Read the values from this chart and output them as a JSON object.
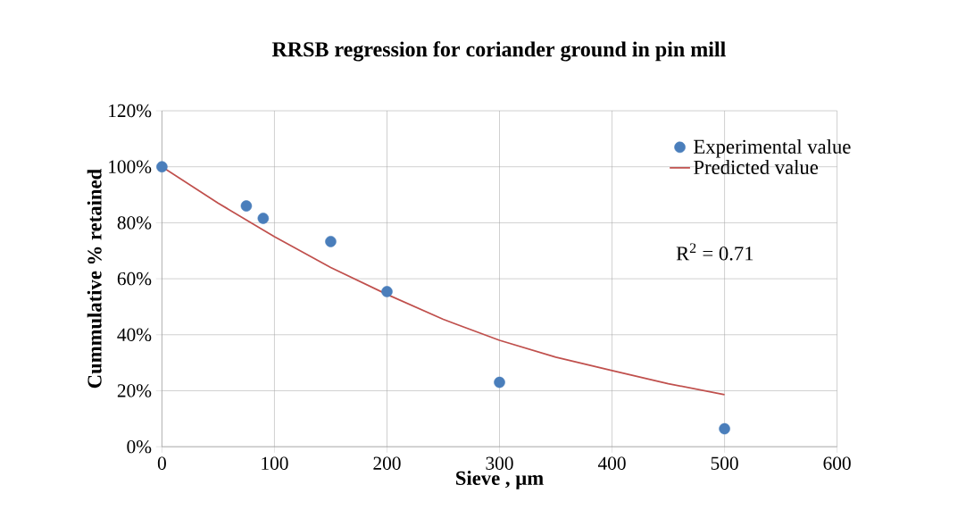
{
  "chart_data": {
    "type": "scatter",
    "title": "RRSB regression for coriander ground in pin mill",
    "xlabel": "Sieve , µm",
    "ylabel": "Cummulative % retained",
    "series": [
      {
        "name": "Experimental value",
        "marker": "circle",
        "color": "#4a7ebb",
        "x": [
          0,
          75,
          90,
          150,
          200,
          300,
          500
        ],
        "values": [
          100,
          86,
          81.6,
          73.3,
          55.4,
          23,
          6.4
        ]
      },
      {
        "name": "Predicted value",
        "type": "line",
        "marker": "none",
        "line_style": "solid",
        "color": "#c0504d",
        "x": [
          0,
          50,
          100,
          150,
          200,
          250,
          300,
          350,
          400,
          450,
          500
        ],
        "values": [
          100,
          87,
          75,
          64,
          54.4,
          45.5,
          38,
          32,
          27.2,
          22.5,
          18.6
        ]
      }
    ],
    "xlim": [
      0,
      600
    ],
    "xticks": [
      0,
      100,
      200,
      300,
      400,
      500,
      600
    ],
    "ylim": [
      0,
      120
    ],
    "yticks": [
      {
        "value": 0,
        "label": "0%"
      },
      {
        "value": 20,
        "label": "20%"
      },
      {
        "value": 40,
        "label": "40%"
      },
      {
        "value": 60,
        "label": "60%"
      },
      {
        "value": 80,
        "label": "80%"
      },
      {
        "value": 100,
        "label": "100%"
      },
      {
        "value": 120,
        "label": "120%"
      }
    ],
    "grid": true,
    "legend": "top right",
    "annotations": [
      "R$^{2}$ = 0.71"
    ]
  }
}
